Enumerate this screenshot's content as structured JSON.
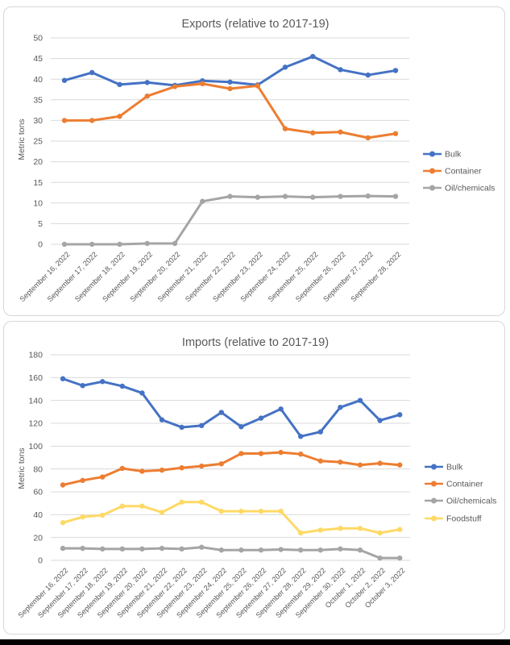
{
  "page": {
    "background": "#FFFFFF",
    "footer_bar_color": "#000000"
  },
  "chart_data": [
    {
      "type": "line",
      "title": "Exports (relative to 2017-19)",
      "ylabel": "Metric tons",
      "ylim": [
        0,
        50
      ],
      "yticks": [
        0,
        5,
        10,
        15,
        20,
        25,
        30,
        35,
        40,
        45,
        50
      ],
      "grid": true,
      "legend_position": "right",
      "categories": [
        "September 16, 2022",
        "September 17, 2022",
        "September 18, 2022",
        "September 19, 2022",
        "September 20, 2022",
        "September 21, 2022",
        "September 22, 2022",
        "September 23, 2022",
        "September 24, 2022",
        "September 25, 2022",
        "September 26, 2022",
        "September 27, 2022",
        "September 28, 2022"
      ],
      "series": [
        {
          "name": "Bulk",
          "color": "#4472C4",
          "values": [
            39.7,
            41.6,
            38.7,
            39.2,
            38.5,
            39.6,
            39.3,
            38.6,
            42.9,
            45.5,
            42.3,
            41.0,
            42.1
          ]
        },
        {
          "name": "Container",
          "color": "#ED7D31",
          "values": [
            30.0,
            30.0,
            31.0,
            35.9,
            38.2,
            38.9,
            37.7,
            38.4,
            28.0,
            27.0,
            27.2,
            25.8,
            26.8
          ]
        },
        {
          "name": "Oil/chemicals",
          "color": "#A5A5A5",
          "values": [
            0,
            0,
            0,
            0.2,
            0.2,
            10.4,
            11.6,
            11.4,
            11.6,
            11.4,
            11.6,
            11.7,
            11.6
          ]
        }
      ]
    },
    {
      "type": "line",
      "title": "Imports (relative to 2017-19)",
      "ylabel": "Metric tons",
      "ylim": [
        0,
        180
      ],
      "yticks": [
        0,
        20,
        40,
        60,
        80,
        100,
        120,
        140,
        160,
        180
      ],
      "grid": true,
      "legend_position": "right",
      "categories": [
        "September 16, 2022",
        "September 17, 2022",
        "September 18, 2022",
        "September 19, 2022",
        "September 20, 2022",
        "September 21, 2022",
        "September 22, 2022",
        "September 23, 2022",
        "September 24, 2022",
        "September 25, 2022",
        "September 26, 2022",
        "September 27, 2022",
        "September 28, 2022",
        "September 29, 2022",
        "September 30, 2022",
        "October 1, 2022",
        "October 2, 2022",
        "October 3, 2022"
      ],
      "series": [
        {
          "name": "Bulk",
          "color": "#4472C4",
          "values": [
            159,
            153,
            156.5,
            152.5,
            146.5,
            123,
            116.5,
            118,
            129.5,
            117,
            124.5,
            132.5,
            108.5,
            112.5,
            134,
            140,
            122.5,
            127.5
          ]
        },
        {
          "name": "Container",
          "color": "#ED7D31",
          "values": [
            66,
            70,
            73,
            80.5,
            78,
            79,
            81,
            82.5,
            84.5,
            93.5,
            93.5,
            94.5,
            93,
            87,
            86,
            83.5,
            85,
            83.5
          ]
        },
        {
          "name": "Oil/chemicals",
          "color": "#A5A5A5",
          "values": [
            10.5,
            10.5,
            10,
            10,
            10,
            10.5,
            10,
            11.5,
            9,
            9,
            9,
            9.5,
            9,
            9,
            10,
            9,
            2,
            2
          ]
        },
        {
          "name": "Foodstuff",
          "color": "#FFD966",
          "values": [
            33,
            38,
            39.5,
            47.5,
            47.5,
            42,
            51,
            51,
            43,
            43,
            43,
            43,
            24,
            26.5,
            28,
            28,
            24,
            27
          ]
        }
      ]
    }
  ]
}
